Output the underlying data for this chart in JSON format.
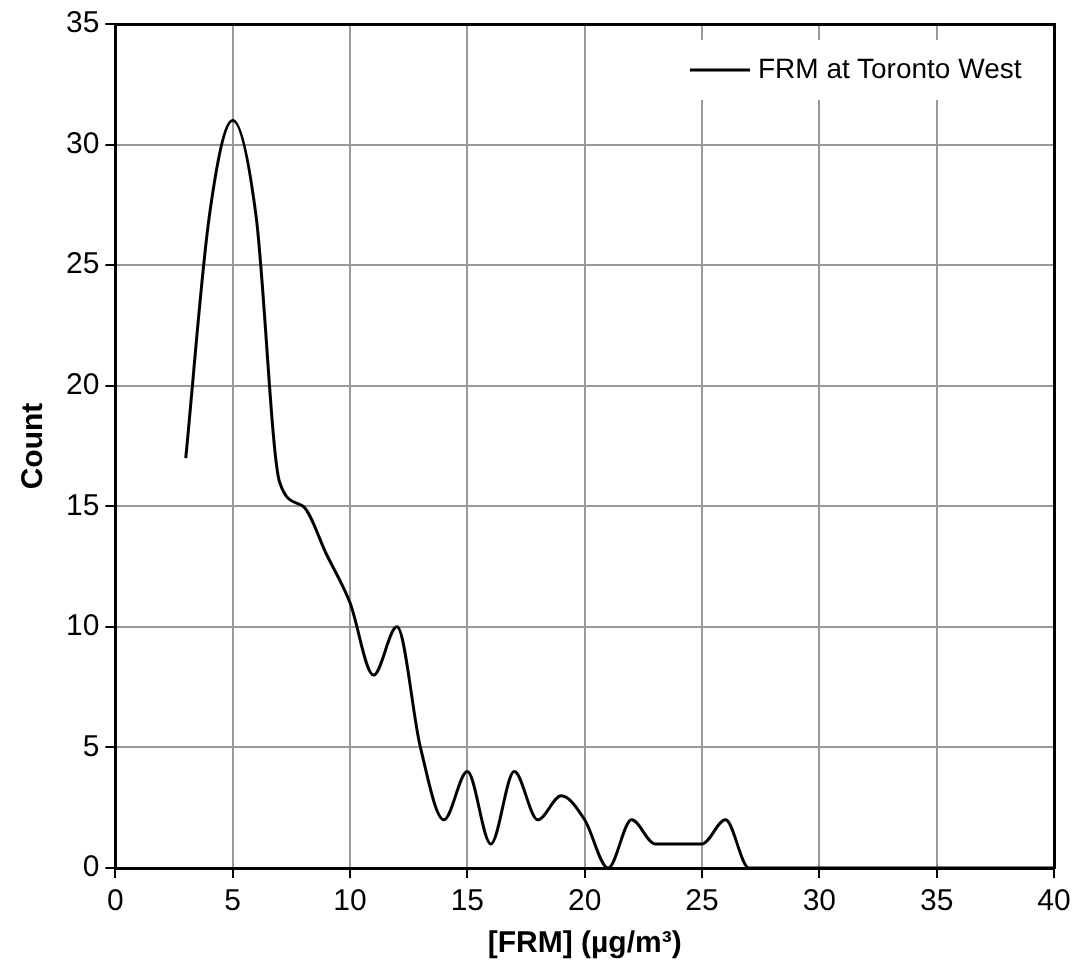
{
  "chart_data": {
    "type": "line",
    "xlabel": "[FRM] (µg/m³)",
    "ylabel": "Count",
    "xlim": [
      0,
      40
    ],
    "xticks": [
      0,
      5,
      10,
      15,
      20,
      25,
      30,
      35,
      40
    ],
    "ylim": [
      0,
      35
    ],
    "yticks": [
      0,
      5,
      10,
      15,
      20,
      25,
      30,
      35
    ],
    "grid": true,
    "legend": "top right",
    "marker": "none",
    "line_style": "solid",
    "series": [
      {
        "name": "FRM at Toronto West",
        "color": "#000000",
        "x": [
          3,
          4,
          5,
          6,
          7,
          8,
          9,
          10,
          11,
          12,
          13,
          14,
          15,
          16,
          17,
          18,
          19,
          20,
          21,
          22,
          23,
          24,
          25,
          26,
          27,
          28,
          29,
          30,
          31,
          32,
          33,
          34,
          35,
          36,
          37,
          38,
          39,
          40
        ],
        "values": [
          17,
          27,
          31,
          27,
          16,
          15,
          13,
          11,
          8,
          10,
          5,
          2,
          4,
          1,
          4,
          2,
          3,
          2,
          0,
          2,
          1,
          1,
          1,
          2,
          0,
          0,
          0,
          0,
          0,
          0,
          0,
          0,
          0,
          0,
          0,
          0,
          0,
          0
        ]
      }
    ]
  }
}
